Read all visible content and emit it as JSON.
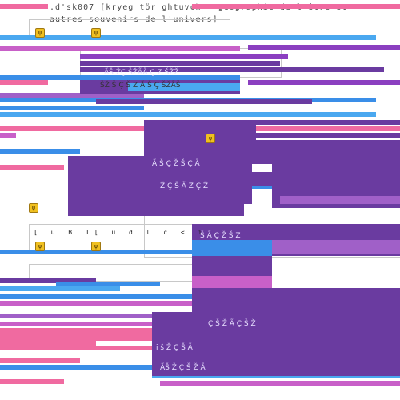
{
  "window": {
    "grip": "•••••••",
    "title_line1": ".d'sk007 [kryeg tör ghtuvch - geographic de l'être et",
    "title_line2": "autres souvenirs de l'univers]"
  },
  "toolbar": {
    "row_text": "[ u B I[ u d l c < i"
  },
  "colors": {
    "purple": "#6a3ba0",
    "purple_light": "#a060c8",
    "violet": "#8b3fc0",
    "magenta": "#c860c8",
    "pink": "#f06aa0",
    "blue": "#3a8ee8",
    "sky": "#4aa8f0",
    "white": "#ffffff"
  },
  "icons": [
    {
      "name": "app-icon-1",
      "glyph": "ψ"
    },
    {
      "name": "app-icon-2",
      "glyph": "ψ"
    },
    {
      "name": "app-icon-3",
      "glyph": "ψ"
    },
    {
      "name": "app-icon-4",
      "glyph": "ψ"
    },
    {
      "name": "app-icon-5",
      "glyph": "ψ"
    },
    {
      "name": "app-icon-6",
      "glyph": "ψ"
    }
  ],
  "glyph_rows": [
    "ÃŠ ŽÇ ŠŽÃÃ Ç Z ŠŽŽ",
    "ŠŽ Š Ç Š Z Ã Š Ç ŠŽÃŠ",
    "Ã  Š Ç  Ž  Š  Ç  Ã",
    "Ž Ç  Š  Ã  Z  Ç  Ž",
    "Š  Ã  Ç  Ž  Š  Z",
    "Ç Š Ž Ã Ç Š Ž",
    "i  ŝ  Ž  Ç  Š  Ã",
    "ÃŠ  Ž  Ç  Š  Ž  Ã"
  ]
}
